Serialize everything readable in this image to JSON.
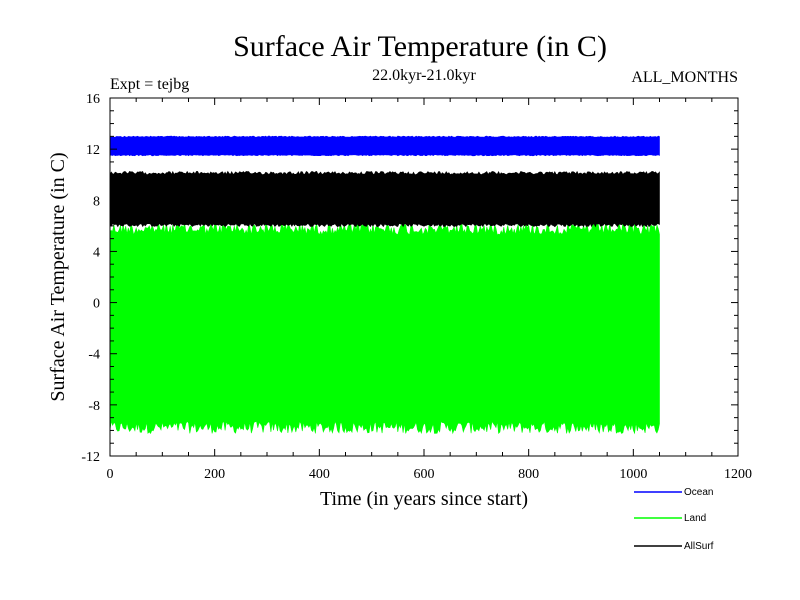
{
  "chart_data": {
    "type": "area",
    "title": "Surface Air Temperature (in C)",
    "subtitle": "22.0kyr-21.0kyr",
    "left_note": "Expt = tejbg",
    "right_note": "ALL_MONTHS",
    "xlabel": "Time (in years since start)",
    "ylabel": "Surface Air Temperature (in C)",
    "xlim": [
      0,
      1200
    ],
    "ylim": [
      -12,
      16
    ],
    "x_ticks": [
      0,
      200,
      400,
      600,
      800,
      1000,
      1200
    ],
    "y_ticks": [
      -12,
      -8,
      -4,
      0,
      4,
      8,
      12,
      16
    ],
    "x_tick_labels": [
      "0",
      "200",
      "400",
      "600",
      "800",
      "1000",
      "1200"
    ],
    "y_tick_labels": [
      "-12",
      "-8",
      "-4",
      "0",
      "4",
      "8",
      "12",
      "16"
    ],
    "series": [
      {
        "name": "Land",
        "color": "#00ff00",
        "x_range": [
          0,
          1050
        ],
        "min_approx": -10.0,
        "max_approx": 6.0
      },
      {
        "name": "AllSurf",
        "color": "#000000",
        "x_range": [
          0,
          1050
        ],
        "min_approx": 6.0,
        "max_approx": 10.2
      },
      {
        "name": "Ocean",
        "color": "#0000ff",
        "x_range": [
          0,
          1050
        ],
        "min_approx": 11.5,
        "max_approx": 13.0
      }
    ],
    "legend": [
      {
        "name": "Ocean",
        "color": "#0000ff"
      },
      {
        "name": "Land",
        "color": "#00ff00"
      },
      {
        "name": "AllSurf",
        "color": "#000000"
      }
    ],
    "legend_position": "bottom-right"
  }
}
